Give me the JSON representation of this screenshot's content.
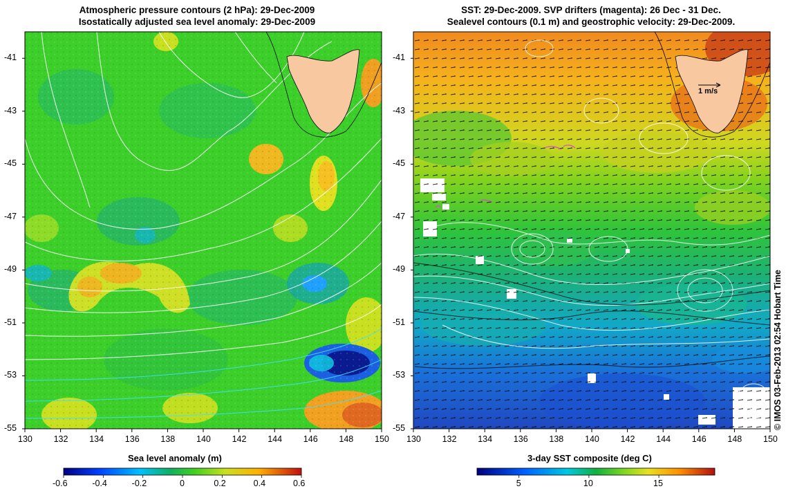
{
  "left_panel": {
    "title_line1": "Atmospheric pressure contours (2 hPa): 29-Dec-2009",
    "title_line2": "Isostatically adjusted sea level anomaly: 29-Dec-2009",
    "colorbar_label": "Sea level anomaly (m)",
    "colorbar_ticks": [
      "-0.6",
      "-0.4",
      "-0.2",
      "0",
      "0.2",
      "0.4",
      "0.6"
    ],
    "colorbar_range": [
      -0.6,
      0.6
    ]
  },
  "right_panel": {
    "title_line1": "SST: 29-Dec-2009. SVP drifters (magenta): 26 Dec - 31 Dec.",
    "title_line2": "Sealevel contours (0.1 m) and geostrophic velocity: 29-Dec-2009.",
    "colorbar_label": "3-day SST composite (deg C)",
    "colorbar_ticks": [
      "5",
      "10",
      "15"
    ],
    "colorbar_range": [
      2,
      19
    ],
    "velocity_scale_label": "1 m/s"
  },
  "axes": {
    "lon_ticks": [
      "130",
      "132",
      "134",
      "136",
      "138",
      "140",
      "142",
      "144",
      "146",
      "148",
      "150"
    ],
    "lat_ticks": [
      "-41",
      "-43",
      "-45",
      "-47",
      "-49",
      "-51",
      "-53",
      "-55"
    ],
    "lon_range": [
      130,
      150
    ],
    "lat_range": [
      -55,
      -40
    ]
  },
  "credit": "© IMOS 03-Feb-2013 02:54 Hobart Time",
  "colors": {
    "land": "#f8c9a0",
    "contour": "#ffffff",
    "vector": "#000000"
  }
}
